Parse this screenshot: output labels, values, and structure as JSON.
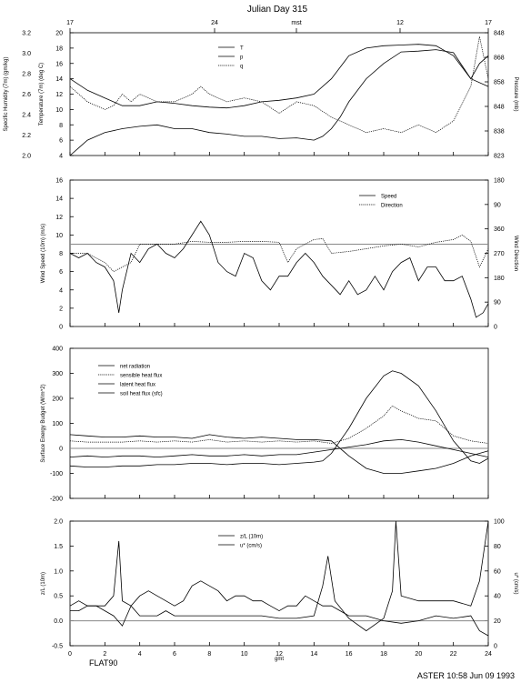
{
  "header": {
    "title": "Julian Day 315",
    "mst_ticks": [
      "17",
      "24",
      "mst",
      "12",
      "17"
    ]
  },
  "footer": {
    "station": "FLAT90",
    "stamp": "ASTER 10:58 Jun 09 1993",
    "xaxis_label": "gmt"
  },
  "chart_data": [
    {
      "type": "line",
      "panel": "met",
      "ylabel_left": "Temperature (7m) (deg C)",
      "ylabel_outer": "Specific Humidity (7m) (gm/kg)",
      "ylabel_right": "Pressure (mb)",
      "ylim": [
        4,
        20
      ],
      "yticks": [
        "4",
        "6",
        "8",
        "10",
        "12",
        "14",
        "16",
        "18",
        "20"
      ],
      "outer_yticks": [
        "2.0",
        "2.2",
        "2.4",
        "2.6",
        "2.8",
        "3.0",
        "3.2"
      ],
      "right_yticks": [
        "823",
        "838",
        "848",
        "858",
        "868",
        "848"
      ],
      "xlim": [
        0,
        24
      ],
      "legend": [
        "T",
        "p",
        "q"
      ],
      "series": [
        {
          "name": "T",
          "style": "solid",
          "x": [
            0,
            0.5,
            1,
            1.5,
            2,
            3,
            4,
            5,
            6,
            7,
            8,
            9,
            10,
            11,
            12,
            13,
            14,
            14.5,
            15,
            15.5,
            16,
            17,
            18,
            19,
            20,
            21,
            22,
            23,
            23.5,
            24
          ],
          "y": [
            4,
            5,
            6,
            6.5,
            7,
            7.5,
            7.8,
            8,
            7.5,
            7.5,
            7,
            6.8,
            6.5,
            6.5,
            6.2,
            6.3,
            6,
            6.5,
            7.5,
            9,
            11,
            14,
            16,
            17.5,
            17.6,
            17.8,
            17.4,
            14,
            16,
            17
          ]
        },
        {
          "name": "p",
          "style": "solid",
          "x": [
            0,
            1,
            2,
            3,
            4,
            5,
            6,
            7,
            8,
            9,
            10,
            11,
            12,
            13,
            14,
            15,
            16,
            17,
            18,
            19,
            20,
            21,
            22,
            23,
            24
          ],
          "y": [
            14,
            12.5,
            11.5,
            10.5,
            10.5,
            11,
            10.8,
            10.5,
            10.3,
            10.2,
            10.5,
            11,
            11.2,
            11.5,
            12,
            14,
            17,
            18,
            18.3,
            18.4,
            18.5,
            18.3,
            17,
            14,
            13
          ]
        },
        {
          "name": "q",
          "style": "dotted",
          "x": [
            0,
            0.5,
            1,
            2,
            2.5,
            3,
            3.5,
            4,
            5,
            6,
            7,
            7.5,
            8,
            9,
            10,
            11,
            12,
            13,
            14,
            15,
            16,
            17,
            18,
            19,
            20,
            21,
            22,
            23,
            23.5,
            24
          ],
          "y": [
            13,
            12,
            11,
            10,
            10.5,
            12,
            11,
            12,
            11,
            11,
            12,
            13,
            12,
            11,
            11.5,
            11,
            9.5,
            11,
            10.5,
            9,
            8,
            7,
            7.5,
            7,
            8,
            7,
            8.5,
            13,
            19.5,
            14
          ]
        }
      ]
    },
    {
      "type": "line",
      "panel": "wind",
      "ylabel_left": "Wind Speed (10m) (m/s)",
      "ylabel_right": "Wind Direction",
      "ylim": [
        0,
        16
      ],
      "yticks": [
        "0",
        "2",
        "4",
        "6",
        "8",
        "10",
        "12",
        "14",
        "16"
      ],
      "right_yticks": [
        "0",
        "90",
        "180",
        "270",
        "360",
        "90",
        "180"
      ],
      "xlim": [
        0,
        24
      ],
      "legend": [
        "Speed",
        "Direction"
      ],
      "reference_line": 9,
      "series": [
        {
          "name": "Speed",
          "style": "solid",
          "x": [
            0,
            0.5,
            1,
            1.5,
            2,
            2.5,
            2.8,
            3,
            3.5,
            4,
            4.5,
            5,
            5.5,
            6,
            6.5,
            7,
            7.5,
            8,
            8.5,
            9,
            9.5,
            10,
            10.5,
            11,
            11.5,
            12,
            12.5,
            13,
            13.5,
            14,
            14.5,
            15,
            15.5,
            16,
            16.5,
            17,
            17.5,
            18,
            18.5,
            19,
            19.5,
            20,
            20.5,
            21,
            21.5,
            22,
            22.5,
            23,
            23.3,
            23.7,
            24
          ],
          "y": [
            8,
            7.5,
            8,
            7,
            6.5,
            5,
            1.5,
            4,
            8,
            7,
            8.5,
            9,
            8,
            7.5,
            8.5,
            10,
            11.5,
            10,
            7,
            6,
            5.5,
            8,
            7.5,
            5,
            4,
            5.5,
            5.5,
            7,
            8,
            7,
            5.5,
            4.5,
            3.5,
            5,
            3.5,
            4,
            5.5,
            4,
            6,
            7,
            7.5,
            5,
            6.5,
            6.5,
            5,
            5,
            5.5,
            3,
            1,
            1.5,
            2.5
          ]
        },
        {
          "name": "Direction",
          "style": "dotted",
          "x": [
            0,
            1,
            2,
            2.5,
            3,
            3.5,
            4,
            5,
            6,
            7,
            8,
            9,
            10,
            11,
            12,
            12.5,
            13,
            13.5,
            14,
            14.5,
            15,
            16,
            17,
            18,
            19,
            20,
            21,
            22,
            22.5,
            23,
            23.5,
            24
          ],
          "y": [
            8,
            8,
            7,
            6,
            6.5,
            7,
            9,
            9,
            9,
            9.3,
            9.2,
            9.2,
            9.3,
            9.3,
            9.2,
            7,
            8.5,
            9,
            9.5,
            9.6,
            8,
            8.2,
            8.5,
            8.8,
            9,
            8.7,
            9.2,
            9.5,
            10,
            9.3,
            6.5,
            8.5
          ]
        }
      ]
    },
    {
      "type": "line",
      "panel": "energy",
      "ylabel_left": "Surface Energy Budget (W/m^2)",
      "ylim": [
        -200,
        400
      ],
      "yticks": [
        "-200",
        "-100",
        "0",
        "100",
        "200",
        "300",
        "400"
      ],
      "xlim": [
        0,
        24
      ],
      "legend": [
        "net radiation",
        "sensible heat flux",
        "latent heat flux",
        "soil heat flux (sfc)"
      ],
      "reference_line": 0,
      "series": [
        {
          "name": "net radiation",
          "style": "solid",
          "x": [
            0,
            1,
            2,
            3,
            4,
            5,
            6,
            7,
            8,
            9,
            10,
            11,
            12,
            13,
            14,
            14.5,
            15,
            16,
            17,
            18,
            18.5,
            19,
            20,
            21,
            22,
            23,
            23.5,
            24
          ],
          "y": [
            -70,
            -75,
            -75,
            -70,
            -70,
            -65,
            -65,
            -60,
            -60,
            -65,
            -60,
            -60,
            -65,
            -60,
            -55,
            -50,
            -20,
            80,
            200,
            290,
            310,
            300,
            250,
            150,
            30,
            -50,
            -60,
            -40
          ]
        },
        {
          "name": "sensible heat flux",
          "style": "dotted",
          "x": [
            0,
            1,
            2,
            3,
            4,
            5,
            6,
            7,
            8,
            9,
            10,
            11,
            12,
            13,
            14,
            15,
            16,
            17,
            18,
            18.5,
            19,
            20,
            21,
            22,
            23,
            24
          ],
          "y": [
            30,
            25,
            25,
            25,
            30,
            25,
            30,
            25,
            35,
            25,
            30,
            25,
            30,
            25,
            30,
            20,
            40,
            80,
            130,
            170,
            150,
            120,
            110,
            50,
            30,
            20
          ]
        },
        {
          "name": "latent heat flux",
          "style": "solid",
          "x": [
            0,
            1,
            2,
            3,
            4,
            5,
            6,
            7,
            8,
            9,
            10,
            11,
            12,
            13,
            14,
            15,
            16,
            17,
            18,
            19,
            20,
            21,
            22,
            23,
            24
          ],
          "y": [
            55,
            50,
            45,
            45,
            50,
            45,
            45,
            40,
            55,
            45,
            40,
            45,
            40,
            35,
            35,
            30,
            -30,
            -80,
            -100,
            -100,
            -90,
            -80,
            -60,
            -30,
            -10
          ]
        },
        {
          "name": "soil heat flux (sfc)",
          "style": "solid",
          "x": [
            0,
            1,
            2,
            3,
            4,
            5,
            6,
            7,
            8,
            9,
            10,
            11,
            12,
            13,
            14,
            15,
            16,
            17,
            18,
            19,
            20,
            21,
            22,
            23,
            24
          ],
          "y": [
            -35,
            -30,
            -35,
            -30,
            -30,
            -35,
            -30,
            -25,
            -30,
            -30,
            -25,
            -30,
            -25,
            -25,
            -15,
            -5,
            5,
            15,
            30,
            35,
            25,
            10,
            -5,
            -20,
            -35
          ]
        }
      ]
    },
    {
      "type": "line",
      "panel": "stability",
      "ylabel_left": "z/L (10m)",
      "ylabel_right": "u* (cm/s)",
      "ylim": [
        -0.5,
        2.0
      ],
      "yticks": [
        "-0.5",
        "0.0",
        "0.5",
        "1.0",
        "1.5",
        "2.0"
      ],
      "right_yticks": [
        "0",
        "20",
        "40",
        "60",
        "80",
        "100"
      ],
      "xlim": [
        0,
        24
      ],
      "xticks": [
        "0",
        "2",
        "4",
        "6",
        "8",
        "10",
        "12",
        "14",
        "16",
        "18",
        "20",
        "22",
        "24"
      ],
      "legend": [
        "z/L (10m)",
        "u* (cm/s)"
      ],
      "reference_line": 0,
      "series": [
        {
          "name": "z/L (10m)",
          "style": "solid",
          "x": [
            0,
            0.5,
            1,
            1.5,
            2,
            2.5,
            2.8,
            3,
            3.5,
            4,
            4.5,
            5,
            5.5,
            6,
            6.5,
            7,
            8,
            9,
            10,
            11,
            12,
            13,
            14,
            14.5,
            14.8,
            15.2,
            16,
            17,
            18,
            18.5,
            18.7,
            19,
            20,
            21,
            22,
            23,
            23.5,
            24
          ],
          "y": [
            0.2,
            0.2,
            0.3,
            0.3,
            0.3,
            0.5,
            1.6,
            0.4,
            0.3,
            0.1,
            0.1,
            0.1,
            0.2,
            0.1,
            0.1,
            0.1,
            0.1,
            0.1,
            0.1,
            0.1,
            0.05,
            0.05,
            0.1,
            0.7,
            1.3,
            0.4,
            0.05,
            -0.2,
            0.05,
            0.6,
            2.0,
            0.5,
            0.4,
            0.4,
            0.4,
            0.3,
            0.8,
            2.0
          ]
        },
        {
          "name": "u* (cm/s)",
          "style": "solid",
          "x": [
            0,
            0.5,
            1,
            1.5,
            2,
            2.5,
            3,
            3.5,
            4,
            4.5,
            5,
            5.5,
            6,
            6.5,
            7,
            7.5,
            8,
            8.5,
            9,
            9.5,
            10,
            10.5,
            11,
            11.5,
            12,
            12.5,
            13,
            13.5,
            14,
            14.5,
            15,
            15.5,
            16,
            17,
            18,
            19,
            20,
            21,
            22,
            23,
            23.5,
            24
          ],
          "y": [
            0.3,
            0.4,
            0.3,
            0.3,
            0.2,
            0.1,
            -0.1,
            0.3,
            0.5,
            0.6,
            0.5,
            0.4,
            0.3,
            0.4,
            0.7,
            0.8,
            0.7,
            0.6,
            0.4,
            0.5,
            0.5,
            0.4,
            0.4,
            0.3,
            0.2,
            0.3,
            0.3,
            0.5,
            0.4,
            0.3,
            0.3,
            0.2,
            0.1,
            0.1,
            0,
            -0.05,
            0,
            0.1,
            0.05,
            0.1,
            -0.2,
            -0.3
          ]
        }
      ]
    }
  ]
}
